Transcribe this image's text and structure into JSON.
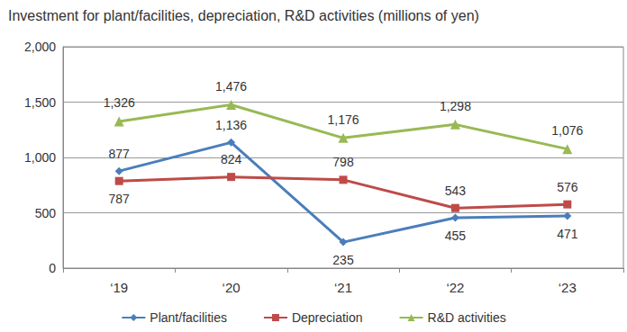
{
  "chart_data": {
    "type": "line",
    "title": "Investment for plant/facilities, depreciation, R&D activities (millions of yen)",
    "categories": [
      "‘19",
      "‘20",
      "‘21",
      "‘22",
      "‘23"
    ],
    "series": [
      {
        "name": "Plant/facilities",
        "color": "#4a7ebb",
        "marker": "diamond",
        "line_style": "solid",
        "values": [
          877,
          1136,
          235,
          455,
          471
        ],
        "value_labels": [
          "877",
          "1,136",
          "235",
          "455",
          "471"
        ]
      },
      {
        "name": "Depreciation",
        "color": "#be4b48",
        "marker": "square",
        "line_style": "solid",
        "values": [
          787,
          824,
          798,
          543,
          576
        ],
        "value_labels": [
          "787",
          "824",
          "798",
          "543",
          "576"
        ]
      },
      {
        "name": "R&D activities",
        "color": "#98b954",
        "marker": "triangle",
        "line_style": "solid",
        "values": [
          1326,
          1476,
          1176,
          1298,
          1076
        ],
        "value_labels": [
          "1,326",
          "1,476",
          "1,176",
          "1,298",
          "1,076"
        ]
      }
    ],
    "ylim": [
      0,
      2000
    ],
    "yticks": [
      0,
      500,
      {
        "value": 1000,
        "label": "1,000"
      },
      {
        "value": 1500,
        "label": "1,500"
      },
      {
        "value": 2000,
        "label": "2,000"
      }
    ],
    "grid": true,
    "legend": "bottom",
    "data_labels": true
  }
}
